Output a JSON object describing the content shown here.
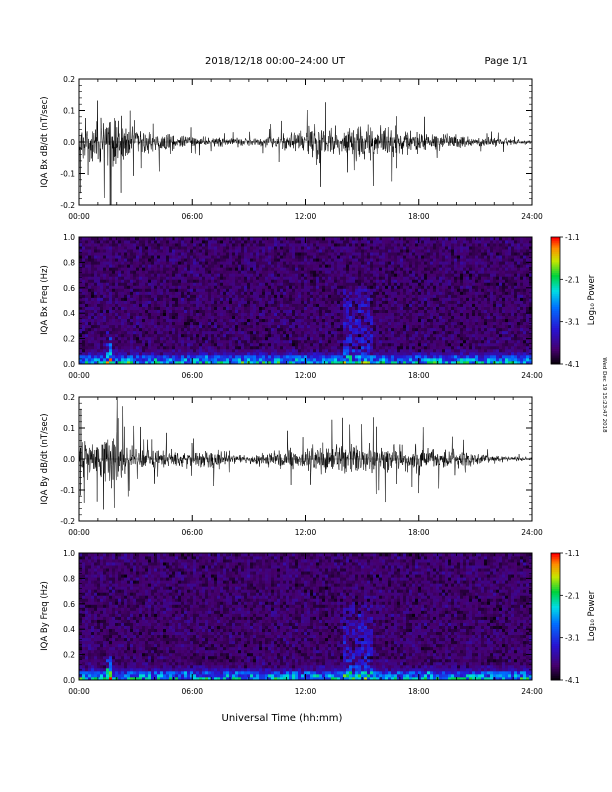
{
  "header": {
    "title": "2018/12/18   00:00–24:00 UT",
    "page_label": "Page 1/1"
  },
  "footer": {
    "xlabel": "Universal Time (hh:mm)",
    "side_stamp": "Wed Dec 19 15:23:47 2018"
  },
  "chart_data": [
    {
      "type": "line",
      "ylabel": "IQA Bx dB/dt (nT/sec)",
      "x_range_hours": [
        0,
        24
      ],
      "ylim": [
        -0.2,
        0.2
      ],
      "yticks": [
        "-0.2",
        "-0.1",
        "0.0",
        "0.1",
        "0.2"
      ],
      "xticks": [
        "00:00",
        "06:00",
        "12:00",
        "18:00",
        "24:00"
      ],
      "series": [
        {
          "color": "#000000",
          "envelope": {
            "hours": [
              0,
              0.5,
              1,
              1.5,
              1.8,
              2.5,
              3,
              4,
              5,
              6,
              7,
              8,
              9,
              10,
              11,
              12,
              12.5,
              13,
              14,
              15,
              15.5,
              16,
              17,
              18,
              19,
              20,
              21,
              22,
              23,
              24
            ],
            "amplitude": [
              0.12,
              0.2,
              0.15,
              0.2,
              0.2,
              0.1,
              0.08,
              0.07,
              0.07,
              0.04,
              0.03,
              0.03,
              0.025,
              0.04,
              0.06,
              0.08,
              0.16,
              0.09,
              0.1,
              0.11,
              0.13,
              0.1,
              0.09,
              0.08,
              0.06,
              0.05,
              0.03,
              0.03,
              0.02,
              0.015
            ]
          }
        }
      ]
    },
    {
      "type": "heatmap",
      "ylabel": "IQA Bx Freq (Hz)",
      "x_range_hours": [
        0,
        24
      ],
      "ylim": [
        0.0,
        1.0
      ],
      "yticks": [
        "0.0",
        "0.2",
        "0.4",
        "0.6",
        "0.8",
        "1.0"
      ],
      "xticks": [
        "00:00",
        "06:00",
        "12:00",
        "18:00",
        "24:00"
      ],
      "colorbar": {
        "label": "Log₁₀ Power",
        "range": [
          -4.1,
          -1.1
        ],
        "ticks": [
          "-1.1",
          "-2.1",
          "-3.1",
          "-4.1"
        ]
      },
      "enhanced_regions": [
        {
          "hours": [
            1.5,
            1.8
          ],
          "freq_max": 0.25,
          "log_power": -2.3
        },
        {
          "hours": [
            14.0,
            15.5
          ],
          "freq_max": 0.6,
          "log_power": -3.0
        },
        {
          "hours": [
            0.0,
            24.0
          ],
          "freq_max": 0.06,
          "log_power": -2.6
        }
      ]
    },
    {
      "type": "line",
      "ylabel": "IQA By dB/dt (nT/sec)",
      "x_range_hours": [
        0,
        24
      ],
      "ylim": [
        -0.2,
        0.2
      ],
      "yticks": [
        "-0.2",
        "-0.1",
        "0.0",
        "0.1",
        "0.2"
      ],
      "xticks": [
        "00:00",
        "06:00",
        "12:00",
        "18:00",
        "24:00"
      ],
      "series": [
        {
          "color": "#000000",
          "envelope": {
            "hours": [
              0,
              0.5,
              1,
              1.5,
              1.8,
              2.5,
              3,
              4,
              5,
              6,
              7,
              8,
              9,
              10,
              11,
              12,
              12.5,
              13,
              14,
              15,
              15.5,
              16,
              17,
              18,
              19,
              20,
              21,
              22,
              23,
              24
            ],
            "amplitude": [
              0.1,
              0.18,
              0.14,
              0.2,
              0.2,
              0.1,
              0.08,
              0.07,
              0.06,
              0.05,
              0.09,
              0.03,
              0.03,
              0.05,
              0.07,
              0.08,
              0.1,
              0.09,
              0.1,
              0.11,
              0.12,
              0.1,
              0.1,
              0.09,
              0.07,
              0.06,
              0.04,
              0.03,
              0.02,
              0.015
            ]
          }
        }
      ]
    },
    {
      "type": "heatmap",
      "ylabel": "IQA By Freq (Hz)",
      "x_range_hours": [
        0,
        24
      ],
      "ylim": [
        0.0,
        1.0
      ],
      "yticks": [
        "0.0",
        "0.2",
        "0.4",
        "0.6",
        "0.8",
        "1.0"
      ],
      "xticks": [
        "00:00",
        "06:00",
        "12:00",
        "18:00",
        "24:00"
      ],
      "colorbar": {
        "label": "Log₁₀ Power",
        "range": [
          -4.1,
          -1.1
        ],
        "ticks": [
          "-1.1",
          "-2.1",
          "-3.1",
          "-4.1"
        ]
      },
      "enhanced_regions": [
        {
          "hours": [
            1.5,
            1.8
          ],
          "freq_max": 0.25,
          "log_power": -2.3
        },
        {
          "hours": [
            14.0,
            15.5
          ],
          "freq_max": 0.6,
          "log_power": -3.0
        },
        {
          "hours": [
            0.0,
            24.0
          ],
          "freq_max": 0.08,
          "log_power": -2.6
        }
      ]
    }
  ]
}
